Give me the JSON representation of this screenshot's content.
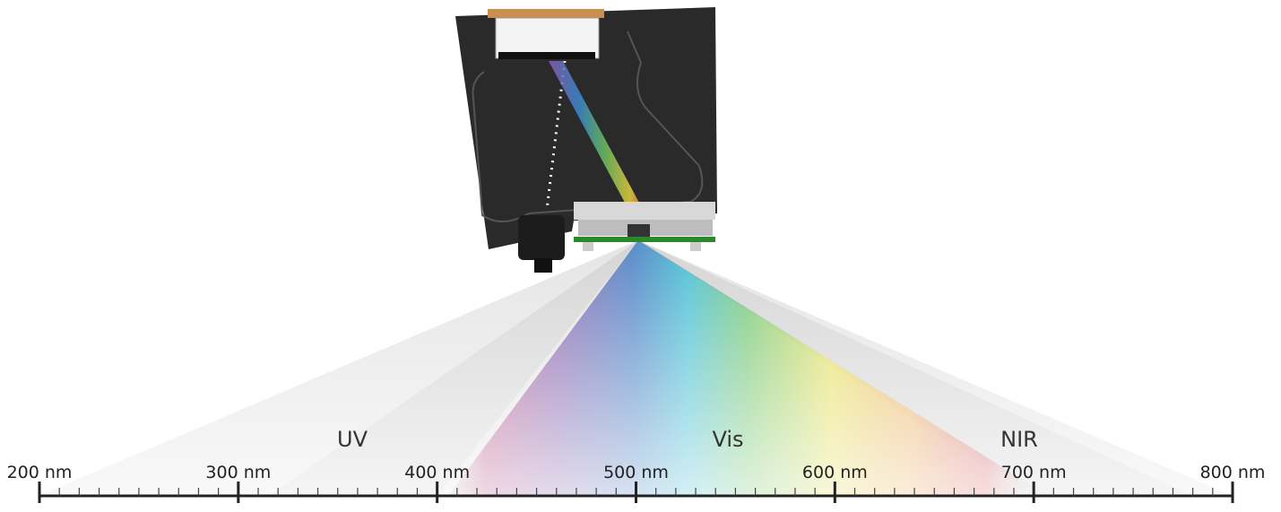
{
  "scale": {
    "ticks": [
      {
        "value": 200,
        "label": "200 nm"
      },
      {
        "value": 300,
        "label": "300 nm"
      },
      {
        "value": 400,
        "label": "400 nm"
      },
      {
        "value": 500,
        "label": "500 nm"
      },
      {
        "value": 600,
        "label": "600 nm"
      },
      {
        "value": 700,
        "label": "700 nm"
      },
      {
        "value": 800,
        "label": "800 nm"
      }
    ],
    "regions": [
      "UV",
      "Vis",
      "NIR"
    ]
  }
}
